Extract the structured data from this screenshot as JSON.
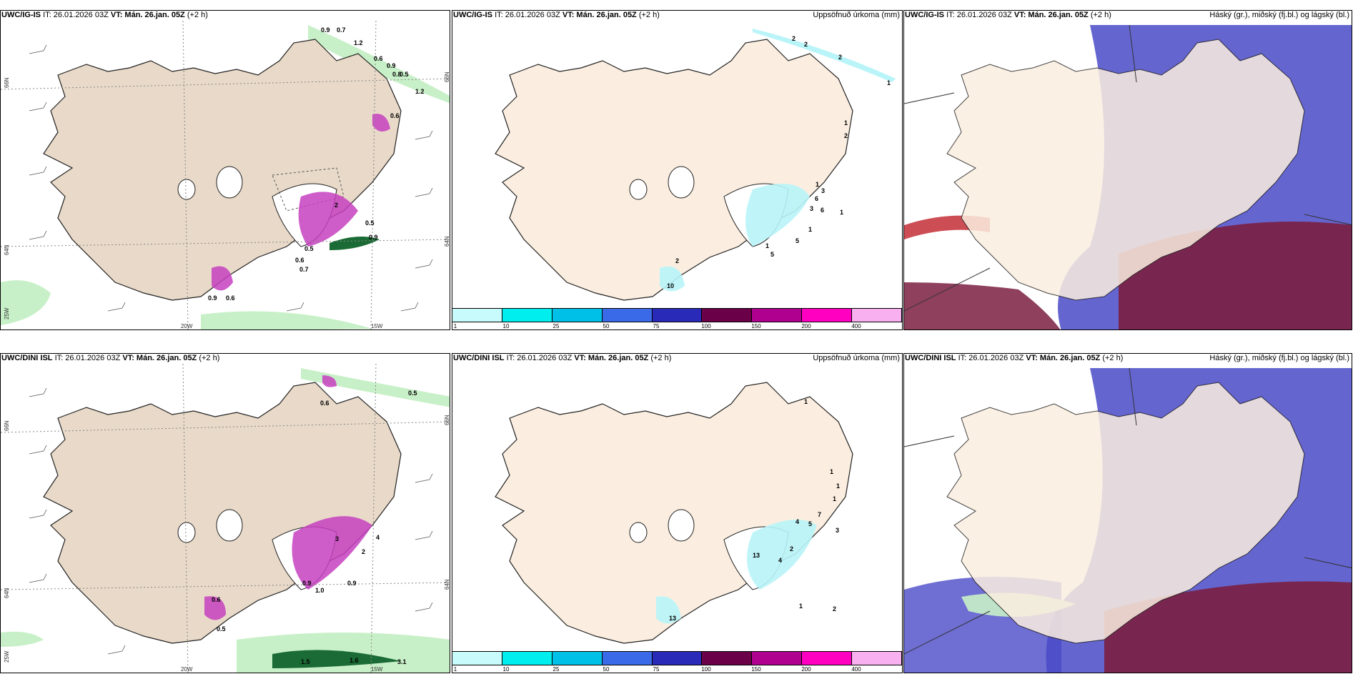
{
  "colors": {
    "land": "#e8d9c8",
    "land_light": "#fbeee0",
    "sea_white": "#ffffff",
    "green": "#c8f0c8",
    "green_dark": "#1a6b35",
    "magenta": "#c640c0",
    "cyan": "#b8f4f8",
    "blue": "#4a4ac8",
    "maroon": "#7a1f40",
    "red": "#c0202a"
  },
  "rows": [
    {
      "panels": [
        {
          "model": "UWC/IG-IS",
          "it_label": "IT: 26.01.2026 03Z",
          "vt_label": "VT: Mán. 26.jan. 05Z",
          "offset": "(+2 h)",
          "right_title": "",
          "lat_labels": [
            "66N",
            "64N"
          ],
          "lon_labels": [
            "20W",
            "15W"
          ],
          "lon_side_labels": [
            "25W"
          ],
          "right_lat_labels": [
            "66N",
            "64N"
          ],
          "values": [
            "0.9",
            "0.7",
            "1.2",
            "0.6",
            "0.9",
            "0.8",
            "0.5",
            "1.2",
            "0.6",
            "2",
            "0.5",
            "0.9",
            "0.5",
            "0.6",
            "0.7",
            "0.9",
            "0.6"
          ]
        },
        {
          "model": "UWC/IG-IS",
          "it_label": "IT: 26.01.2026 03Z",
          "vt_label": "VT: Mán. 26.jan. 05Z",
          "offset": "(+2 h)",
          "right_title": "Uppsöfnuð úrkoma (mm)",
          "values": [
            "2",
            "2",
            "2",
            "1",
            "1",
            "2",
            "1",
            "3",
            "6",
            "3",
            "6",
            "1",
            "1",
            "5",
            "1",
            "5",
            "2",
            "10"
          ],
          "colorbar": [
            "1",
            "10",
            "25",
            "50",
            "75",
            "100",
            "150",
            "200",
            "400"
          ]
        },
        {
          "model": "UWC/IG-IS",
          "it_label": "IT: 26.01.2026 03Z",
          "vt_label": "VT: Mán. 26.jan. 05Z",
          "offset": "(+2 h)",
          "right_title": "Háský (gr.), miðský (fj.bl.) og lágský (bl.)"
        }
      ]
    },
    {
      "panels": [
        {
          "model": "UWC/DINI ISL",
          "it_label": "IT: 26.01.2026 03Z",
          "vt_label": "VT: Mán. 26.jan. 05Z",
          "offset": "(+2 h)",
          "right_title": "",
          "lat_labels": [
            "66N",
            "64N"
          ],
          "lon_labels": [
            "20W",
            "15W"
          ],
          "lon_side_labels": [
            "25W"
          ],
          "right_lat_labels": [
            "66N",
            "64N"
          ],
          "values": [
            "0.5",
            "0.6",
            "0.9",
            "1.0",
            "0.9",
            "0.5",
            "3",
            "2",
            "4",
            "0.6",
            "1.5",
            "3.1",
            "1.6"
          ]
        },
        {
          "model": "UWC/DINI ISL",
          "it_label": "IT: 26.01.2026 03Z",
          "vt_label": "VT: Mán. 26.jan. 05Z",
          "offset": "(+2 h)",
          "right_title": "Uppsöfnuð úrkoma (mm)",
          "values": [
            "1",
            "1",
            "1",
            "1",
            "7",
            "5",
            "4",
            "3",
            "2",
            "4",
            "13",
            "1",
            "2",
            "13"
          ],
          "colorbar": [
            "1",
            "10",
            "25",
            "50",
            "75",
            "100",
            "150",
            "200",
            "400"
          ]
        },
        {
          "model": "UWC/DINI ISL",
          "it_label": "IT: 26.01.2026 03Z",
          "vt_label": "VT: Mán. 26.jan. 05Z",
          "offset": "(+2 h)",
          "right_title": "Háský (gr.), miðský (fj.bl.) og lágský (bl.)"
        }
      ]
    }
  ],
  "colorbar_colors": [
    "#c8fbfb",
    "#00eeee",
    "#00c0e8",
    "#3a6ae8",
    "#2a2ab8",
    "#6a0048",
    "#b00090",
    "#ff00c0",
    "#f8b0f0"
  ]
}
